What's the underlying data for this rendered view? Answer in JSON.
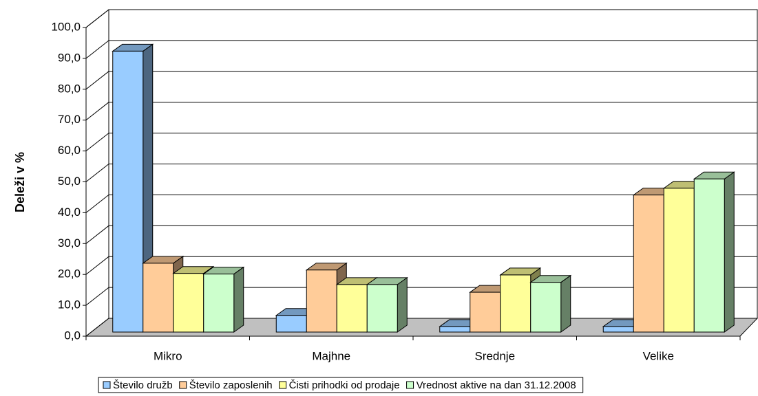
{
  "chart_data": {
    "type": "bar3d",
    "y_label": "Deleži v %",
    "categories": [
      "Mikro",
      "Majhne",
      "Srednje",
      "Velike"
    ],
    "series": [
      {
        "name": "Število družb",
        "color": "#99ccff",
        "values": [
          91.0,
          5.4,
          1.8,
          1.8
        ]
      },
      {
        "name": "Število zaposlenih",
        "color": "#ffcc99",
        "values": [
          22.3,
          20.1,
          12.9,
          44.4
        ]
      },
      {
        "name": "Čisti prihodki od prodaje",
        "color": "#ffff99",
        "values": [
          19.0,
          15.4,
          18.5,
          46.6
        ]
      },
      {
        "name": "Vrednost aktive na dan 31.12.2008",
        "color": "#ccffcc",
        "values": [
          18.8,
          15.4,
          16.1,
          49.6
        ]
      }
    ],
    "ylim": [
      0,
      100
    ],
    "yticks": [
      {
        "value": 0,
        "label": "0,0"
      },
      {
        "value": 10,
        "label": "10,0"
      },
      {
        "value": 20,
        "label": "20,0"
      },
      {
        "value": 30,
        "label": "30,0"
      },
      {
        "value": 40,
        "label": "40,0"
      },
      {
        "value": 50,
        "label": "50,0"
      },
      {
        "value": 60,
        "label": "60,0"
      },
      {
        "value": 70,
        "label": "70,0"
      },
      {
        "value": 80,
        "label": "80,0"
      },
      {
        "value": 90,
        "label": "90,0"
      },
      {
        "value": 100,
        "label": "100,0"
      }
    ],
    "grid": true,
    "legend": "bottom"
  }
}
